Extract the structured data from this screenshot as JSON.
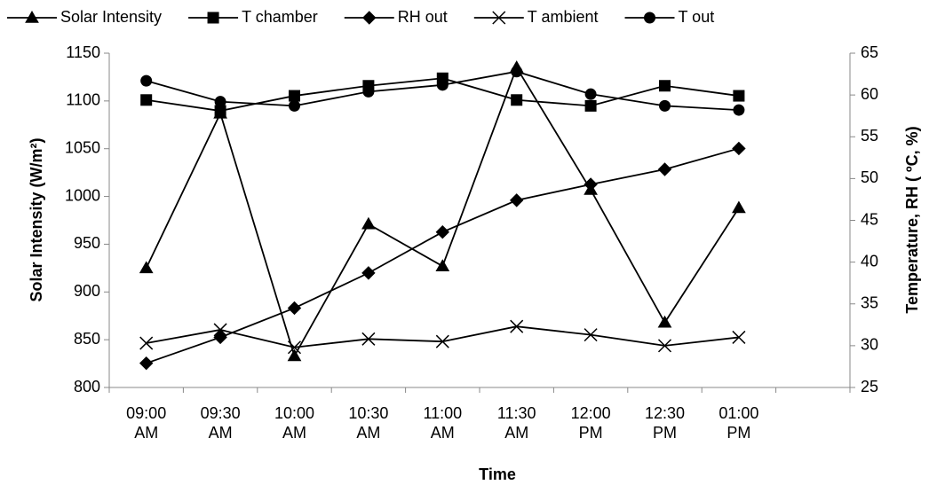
{
  "chart_data": {
    "type": "line",
    "x_label": "Time",
    "y_label": "Solar Intensity (W/m²)",
    "y2_label": "Temperature, RH ( ºC, %)",
    "categories": [
      "09:00 AM",
      "09:30 AM",
      "10:00 AM",
      "10:30 AM",
      "11:00 AM",
      "11:30 AM",
      "12:00 PM",
      "12:30 PM",
      "01:00 PM",
      null
    ],
    "ylim": [
      800,
      1150
    ],
    "yticks": [
      800,
      850,
      900,
      950,
      1000,
      1050,
      1100,
      1150
    ],
    "y2lim": [
      25,
      65
    ],
    "y2ticks": [
      25,
      30,
      35,
      40,
      45,
      50,
      55,
      60,
      65
    ],
    "legend": "top",
    "series": [
      {
        "name": "Solar Intensity",
        "color": "#000000",
        "marker": "triangle",
        "values": [
          925,
          1087,
          833,
          971,
          927,
          1135,
          1007,
          868,
          988,
          null
        ]
      },
      {
        "name": "T chamber",
        "color": "#000000",
        "marker": "square",
        "axis": "y2",
        "values": [
          59.4,
          58.1,
          59.9,
          61.1,
          62.0,
          59.4,
          58.7,
          61.1,
          59.9,
          null
        ]
      },
      {
        "name": "RH out",
        "color": "#000000",
        "marker": "diamond",
        "axis": "y2",
        "values": [
          27.9,
          31.0,
          34.5,
          38.7,
          43.6,
          47.4,
          49.3,
          51.1,
          53.6,
          null
        ]
      },
      {
        "name": "T ambient",
        "color": "#000000",
        "marker": "x",
        "axis": "y2",
        "values": [
          30.3,
          31.9,
          29.8,
          30.8,
          30.5,
          32.3,
          31.3,
          30.0,
          31.0,
          null
        ]
      },
      {
        "name": "T out",
        "color": "#000000",
        "marker": "circle",
        "axis": "y2",
        "values": [
          61.7,
          59.2,
          58.7,
          60.4,
          61.2,
          62.8,
          60.1,
          58.7,
          58.2,
          null
        ]
      }
    ]
  }
}
